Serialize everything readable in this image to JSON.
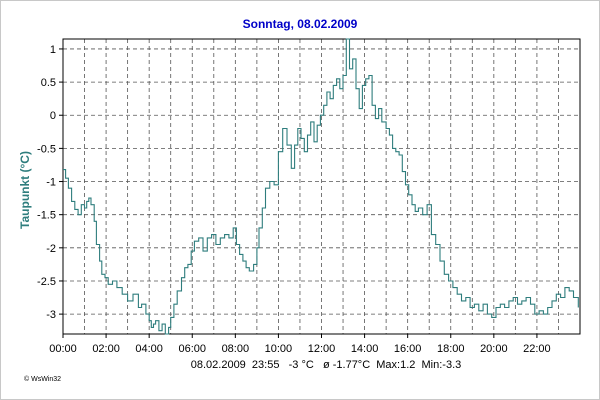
{
  "chart_data": {
    "type": "line",
    "title": "Sonntag, 08.02.2009",
    "ylabel": "Taupunkt  (°C)",
    "xlabel": "",
    "xlim": [
      0,
      24
    ],
    "ylim": [
      -3.3,
      1.15
    ],
    "y_ticks": [
      1,
      0.5,
      0,
      -0.5,
      -1,
      -1.5,
      -2,
      -2.5,
      -3
    ],
    "y_tick_labels": [
      "1",
      "0.5",
      "0",
      "-0.5",
      "-1",
      "-1.5",
      "-2",
      "-2.5",
      "-3"
    ],
    "x_ticks": [
      0,
      2,
      4,
      6,
      8,
      10,
      12,
      14,
      16,
      18,
      20,
      22
    ],
    "x_tick_labels": [
      "00:00",
      "02:00",
      "04:00",
      "06:00",
      "08:00",
      "10:00",
      "12:00",
      "14:00",
      "16:00",
      "18:00",
      "20:00",
      "22:00"
    ],
    "grid": true,
    "series": [
      {
        "color": "#2e7d7d",
        "x": [
          0.0,
          0.12,
          0.25,
          0.4,
          0.55,
          0.7,
          0.85,
          1.0,
          1.1,
          1.2,
          1.3,
          1.45,
          1.55,
          1.7,
          1.8,
          1.95,
          2.1,
          2.3,
          2.5,
          2.75,
          3.0,
          3.25,
          3.5,
          3.65,
          3.85,
          4.0,
          4.1,
          4.2,
          4.3,
          4.45,
          4.6,
          4.75,
          4.9,
          5.0,
          5.15,
          5.3,
          5.5,
          5.65,
          5.8,
          5.95,
          6.1,
          6.3,
          6.5,
          6.7,
          6.9,
          7.1,
          7.3,
          7.5,
          7.7,
          7.9,
          8.05,
          8.2,
          8.35,
          8.5,
          8.65,
          8.85,
          9.0,
          9.1,
          9.25,
          9.4,
          9.6,
          9.8,
          10.0,
          10.2,
          10.4,
          10.6,
          10.75,
          10.9,
          11.05,
          11.2,
          11.35,
          11.5,
          11.65,
          11.8,
          11.95,
          12.1,
          12.25,
          12.4,
          12.55,
          12.7,
          12.85,
          13.0,
          13.15,
          13.3,
          13.45,
          13.6,
          13.75,
          13.9,
          14.05,
          14.2,
          14.35,
          14.5,
          14.65,
          14.8,
          15.0,
          15.15,
          15.3,
          15.45,
          15.6,
          15.75,
          15.9,
          16.05,
          16.2,
          16.35,
          16.5,
          16.7,
          16.9,
          17.1,
          17.3,
          17.5,
          17.7,
          17.9,
          18.1,
          18.3,
          18.5,
          18.7,
          18.9,
          19.1,
          19.3,
          19.5,
          19.7,
          19.9,
          20.1,
          20.3,
          20.5,
          20.7,
          20.9,
          21.1,
          21.3,
          21.5,
          21.7,
          21.9,
          22.1,
          22.3,
          22.5,
          22.7,
          22.9,
          23.1,
          23.3,
          23.5,
          23.7,
          23.92
        ],
        "y": [
          -0.82,
          -0.95,
          -1.1,
          -1.3,
          -1.42,
          -1.5,
          -1.35,
          -1.4,
          -1.3,
          -1.25,
          -1.35,
          -1.6,
          -1.95,
          -2.2,
          -2.4,
          -2.45,
          -2.55,
          -2.5,
          -2.6,
          -2.7,
          -2.8,
          -2.7,
          -2.9,
          -2.85,
          -3.0,
          -3.1,
          -3.2,
          -3.15,
          -3.1,
          -3.25,
          -3.15,
          -3.3,
          -3.2,
          -3.05,
          -2.85,
          -2.65,
          -2.45,
          -2.3,
          -2.25,
          -2.05,
          -1.9,
          -1.85,
          -2.05,
          -1.85,
          -1.8,
          -1.95,
          -1.85,
          -1.8,
          -1.85,
          -1.7,
          -1.95,
          -2.1,
          -2.2,
          -2.3,
          -2.35,
          -2.25,
          -2.0,
          -1.7,
          -1.4,
          -1.1,
          -1.0,
          -1.05,
          -0.55,
          -0.2,
          -0.45,
          -0.8,
          -0.45,
          -0.2,
          -0.35,
          -0.55,
          -0.3,
          -0.1,
          -0.4,
          -0.15,
          0.0,
          0.15,
          0.35,
          0.25,
          0.45,
          0.55,
          0.4,
          0.6,
          1.15,
          0.7,
          0.85,
          0.4,
          0.1,
          0.45,
          0.55,
          0.6,
          0.15,
          -0.05,
          0.1,
          -0.1,
          -0.2,
          -0.3,
          -0.5,
          -0.55,
          -0.6,
          -0.85,
          -1.05,
          -1.2,
          -1.35,
          -1.45,
          -1.4,
          -1.5,
          -1.35,
          -1.8,
          -1.95,
          -2.2,
          -2.4,
          -2.5,
          -2.6,
          -2.7,
          -2.8,
          -2.75,
          -2.9,
          -2.85,
          -2.95,
          -2.85,
          -3.0,
          -3.05,
          -2.9,
          -2.85,
          -2.9,
          -2.8,
          -2.75,
          -2.85,
          -2.8,
          -2.75,
          -2.85,
          -3.0,
          -2.95,
          -3.0,
          -2.9,
          -2.8,
          -2.7,
          -2.75,
          -2.6,
          -2.65,
          -2.75,
          -2.9
        ]
      }
    ]
  },
  "status_line": "08.02.2009  23:55   -3 °C   ø -1.77°C  Max:1.2  Min:-3.3",
  "credit": "© WsWin32"
}
